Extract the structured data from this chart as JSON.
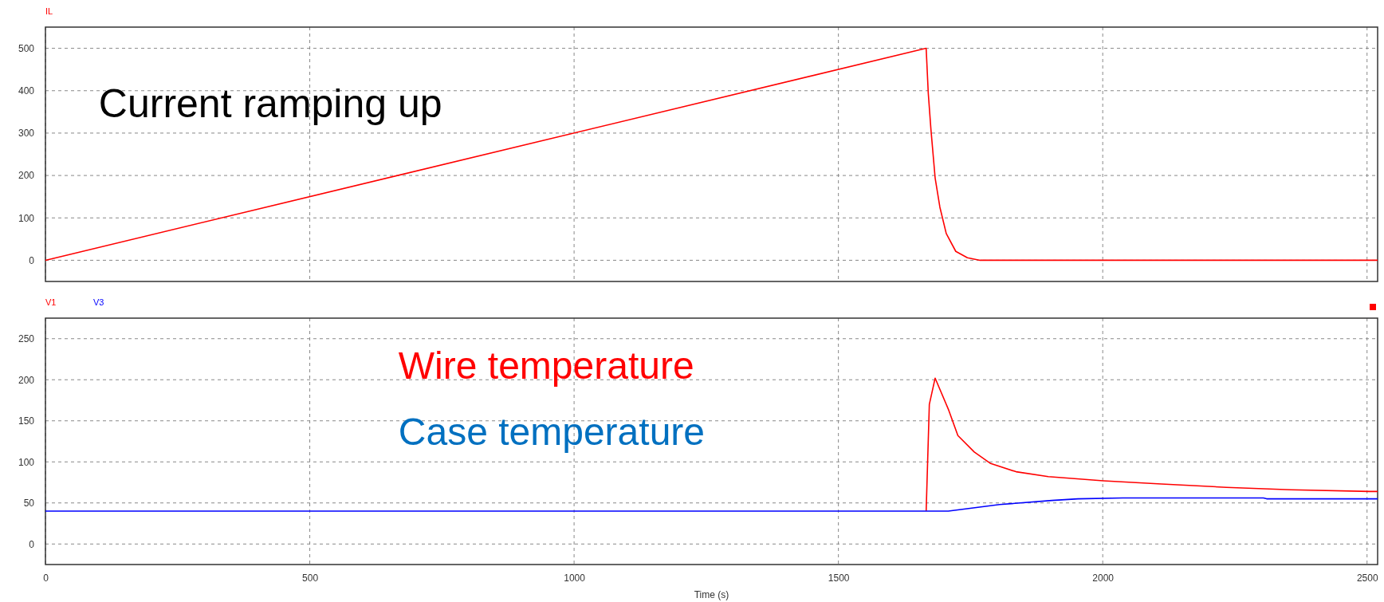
{
  "chart_data": [
    {
      "type": "line",
      "xlim": [
        0,
        2520
      ],
      "xticks": [
        0,
        500,
        1000,
        1500,
        2000,
        2500
      ],
      "ylim": [
        -50,
        550
      ],
      "yticks": [
        0,
        100,
        200,
        300,
        400,
        500
      ],
      "grid": true,
      "legend": "top left",
      "tick_labels": "y",
      "line_style": "solid",
      "series": [
        {
          "name": "IL",
          "color": "#ff0000",
          "x": [
            0,
            1666,
            1670,
            1675,
            1683,
            1692,
            1704,
            1722,
            1744,
            1768,
            2520
          ],
          "values": [
            0,
            500,
            394,
            309,
            194,
            125,
            63,
            21,
            6,
            0,
            0
          ]
        }
      ],
      "annotations": [
        "Current ramping up"
      ]
    },
    {
      "type": "line",
      "xlim": [
        0,
        2520
      ],
      "xticks": [
        0,
        500,
        1000,
        1500,
        2000,
        2500
      ],
      "ylim": [
        -25,
        275
      ],
      "yticks": [
        0,
        50,
        100,
        150,
        200,
        250
      ],
      "grid": true,
      "legend": "top left",
      "xlabel": "Time (s)",
      "line_style": "solid",
      "series": [
        {
          "name": "V1",
          "color": "#ff0000",
          "x": [
            1666,
            1672,
            1683,
            1708,
            1726,
            1757,
            1788,
            1836,
            1897,
            2001,
            2111,
            2234,
            2356,
            2505,
            2520
          ],
          "values": [
            40,
            170,
            202,
            164,
            132,
            112,
            98,
            88,
            82,
            77,
            73,
            69,
            66,
            64,
            64
          ]
        },
        {
          "name": "V3",
          "color": "#0000ff",
          "x": [
            0,
            1708,
            1805,
            1904,
            1953,
            2038,
            2304,
            2310,
            2520
          ],
          "values": [
            40,
            40,
            48,
            53,
            55,
            56,
            56,
            55,
            55
          ]
        }
      ],
      "annotations": [
        "Wire temperature",
        "Case temperature"
      ]
    }
  ]
}
